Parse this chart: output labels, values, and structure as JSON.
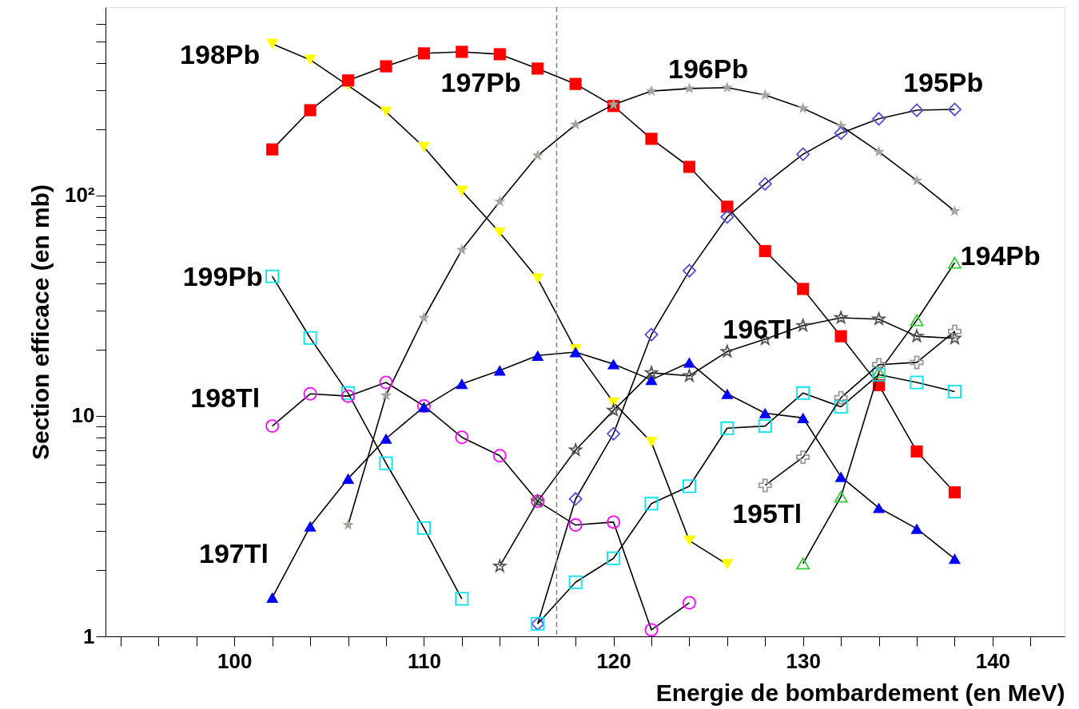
{
  "chart_data": {
    "type": "line",
    "xlabel": "Energie de bombardement (en MeV)",
    "ylabel": "Section efficace (en mb)",
    "log": "y",
    "x": [
      102,
      104,
      106,
      108,
      110,
      112,
      114,
      116,
      118,
      120,
      122,
      124,
      126,
      128,
      130,
      132,
      134,
      136,
      138
    ],
    "xlim": [
      93.2,
      143.8
    ],
    "xticks": [
      {
        "value": 94,
        "label": null
      },
      {
        "value": 96,
        "label": null
      },
      {
        "value": 98,
        "label": null
      },
      100,
      {
        "value": 102,
        "label": null
      },
      {
        "value": 104,
        "label": null
      },
      {
        "value": 106,
        "label": null
      },
      {
        "value": 108,
        "label": null
      },
      110,
      {
        "value": 112,
        "label": null
      },
      {
        "value": 114,
        "label": null
      },
      {
        "value": 116,
        "label": null
      },
      {
        "value": 118,
        "label": null
      },
      120,
      {
        "value": 122,
        "label": null
      },
      {
        "value": 124,
        "label": null
      },
      {
        "value": 126,
        "label": null
      },
      {
        "value": 128,
        "label": null
      },
      130,
      {
        "value": 132,
        "label": null
      },
      {
        "value": 134,
        "label": null
      },
      {
        "value": 136,
        "label": null
      },
      {
        "value": 138,
        "label": null
      },
      140,
      {
        "value": 142,
        "label": null
      }
    ],
    "ylim": [
      1,
      716
    ],
    "yticks": [
      1,
      {
        "value": 2,
        "label": null
      },
      {
        "value": 3,
        "label": null
      },
      {
        "value": 4,
        "label": null
      },
      {
        "value": 5,
        "label": null
      },
      {
        "value": 6,
        "label": null
      },
      {
        "value": 7,
        "label": null
      },
      {
        "value": 8,
        "label": null
      },
      {
        "value": 9,
        "label": null
      },
      10,
      {
        "value": 20,
        "label": null
      },
      {
        "value": 30,
        "label": null
      },
      {
        "value": 40,
        "label": null
      },
      {
        "value": 50,
        "label": null
      },
      {
        "value": 60,
        "label": null
      },
      {
        "value": 70,
        "label": null
      },
      {
        "value": 80,
        "label": null
      },
      {
        "value": 90,
        "label": null
      },
      {
        "value": 100,
        "label": "10²"
      },
      {
        "value": 200,
        "label": null
      },
      {
        "value": 300,
        "label": null
      },
      {
        "value": 400,
        "label": null
      },
      {
        "value": 500,
        "label": null
      },
      {
        "value": 600,
        "label": null
      }
    ],
    "grid": false,
    "line_style": "solid",
    "ref_lines": [
      {
        "axis": "x",
        "value": 117,
        "color": "#808080",
        "line_style": "dashed"
      }
    ],
    "series": [
      {
        "name": "198Pb",
        "color": "#ffff00",
        "marker": "triangle-down",
        "values": [
          488,
          413,
          316,
          240,
          166,
          105,
          68,
          42,
          20,
          11.5,
          7.6,
          2.72,
          2.12,
          null,
          null,
          null,
          null,
          null,
          null
        ]
      },
      {
        "name": "197Pb",
        "color": "#ff0000",
        "marker": "square",
        "values": [
          162,
          244,
          333,
          386,
          442,
          449,
          438,
          377,
          321,
          255,
          181,
          135,
          89,
          56,
          37.7,
          23,
          13.8,
          6.9,
          4.5
        ]
      },
      {
        "name": "196Pb",
        "color": "#a8a39c",
        "marker": "star",
        "values": [
          null,
          null,
          3.2,
          12.4,
          27.9,
          56.7,
          94,
          152,
          210,
          259,
          298,
          306,
          309,
          286,
          249,
          207,
          158,
          117,
          85
        ]
      },
      {
        "name": "195Pb",
        "color": "#5050e0",
        "marker": "diamond",
        "values": [
          null,
          null,
          null,
          null,
          null,
          null,
          null,
          1.14,
          4.2,
          8.3,
          23.4,
          45.6,
          80,
          113,
          154,
          192,
          223,
          244,
          246
        ]
      },
      {
        "name": "194Pb",
        "color": "#33cc33",
        "marker": "triangle",
        "values": [
          null,
          null,
          null,
          null,
          null,
          null,
          null,
          null,
          null,
          null,
          null,
          null,
          null,
          null,
          2.14,
          4.3,
          15.8,
          27.2,
          49.6
        ]
      },
      {
        "name": "199Pb",
        "color": "#00e5ee",
        "marker": "square",
        "values": [
          43,
          22.6,
          12.7,
          6.1,
          3.1,
          1.48,
          null,
          1.14,
          1.76,
          2.26,
          4.0,
          4.8,
          8.8,
          9.0,
          12.7,
          11.0,
          15.4,
          14.2,
          12.9
        ]
      },
      {
        "name": "198Tl",
        "color": "#ff00ff",
        "marker": "circle",
        "values": [
          9.0,
          12.6,
          12.3,
          14.2,
          11.1,
          8.0,
          6.6,
          4.1,
          3.2,
          3.3,
          1.07,
          1.42,
          null,
          null,
          null,
          null,
          null,
          null,
          null
        ]
      },
      {
        "name": "197Tl",
        "color": "#0000ff",
        "marker": "triangle",
        "values": [
          1.5,
          3.16,
          5.2,
          7.9,
          11.0,
          14.0,
          16.1,
          18.8,
          19.5,
          17.2,
          14.6,
          17.5,
          12.6,
          10.3,
          9.8,
          5.3,
          3.83,
          3.08,
          2.25
        ]
      },
      {
        "name": "196Tl",
        "color": "#555555",
        "marker": "star",
        "values": [
          null,
          null,
          null,
          null,
          null,
          null,
          2.08,
          4.1,
          7.0,
          10.6,
          15.7,
          15.2,
          19.6,
          22.3,
          25.7,
          27.9,
          27.5,
          23.0,
          22.5
        ]
      },
      {
        "name": "195Tl",
        "color": "#999999",
        "marker": "cross",
        "values": [
          null,
          null,
          null,
          null,
          null,
          null,
          null,
          null,
          null,
          null,
          null,
          null,
          null,
          4.84,
          6.5,
          12.1,
          17.1,
          17.5,
          24.2
        ]
      }
    ]
  }
}
